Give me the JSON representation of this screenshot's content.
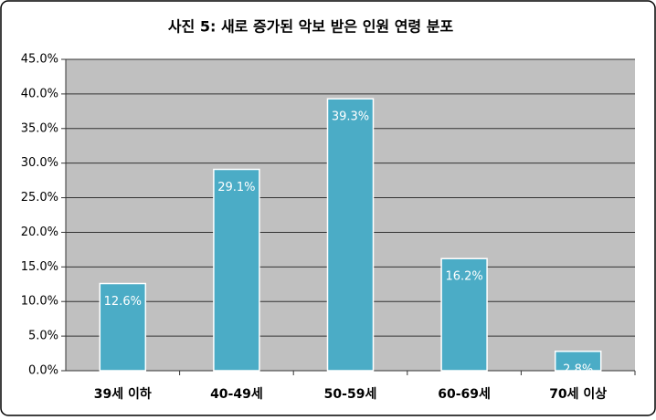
{
  "chart_data": {
    "type": "bar",
    "title": "사진 5: 새로 증가된 악보 받은 인원 연령 분포",
    "categories": [
      "39세 이하",
      "40-49세",
      "50-59세",
      "60-69세",
      "70세 이상"
    ],
    "values": [
      12.6,
      29.1,
      39.3,
      16.2,
      2.8
    ],
    "value_labels": [
      "12.6%",
      "29.1%",
      "39.3%",
      "16.2%",
      "2.8%"
    ],
    "color": "#4bacc6",
    "ylim": [
      0,
      45
    ],
    "yticks": [
      {
        "value": 0,
        "label": "0.0%"
      },
      {
        "value": 5,
        "label": "5.0%"
      },
      {
        "value": 10,
        "label": "10.0%"
      },
      {
        "value": 15,
        "label": "15.0%"
      },
      {
        "value": 20,
        "label": "20.0%"
      },
      {
        "value": 25,
        "label": "25.0%"
      },
      {
        "value": 30,
        "label": "30.0%"
      },
      {
        "value": 35,
        "label": "35.0%"
      },
      {
        "value": 40,
        "label": "40.0%"
      },
      {
        "value": 45,
        "label": "45.0%"
      }
    ],
    "grid": true
  }
}
